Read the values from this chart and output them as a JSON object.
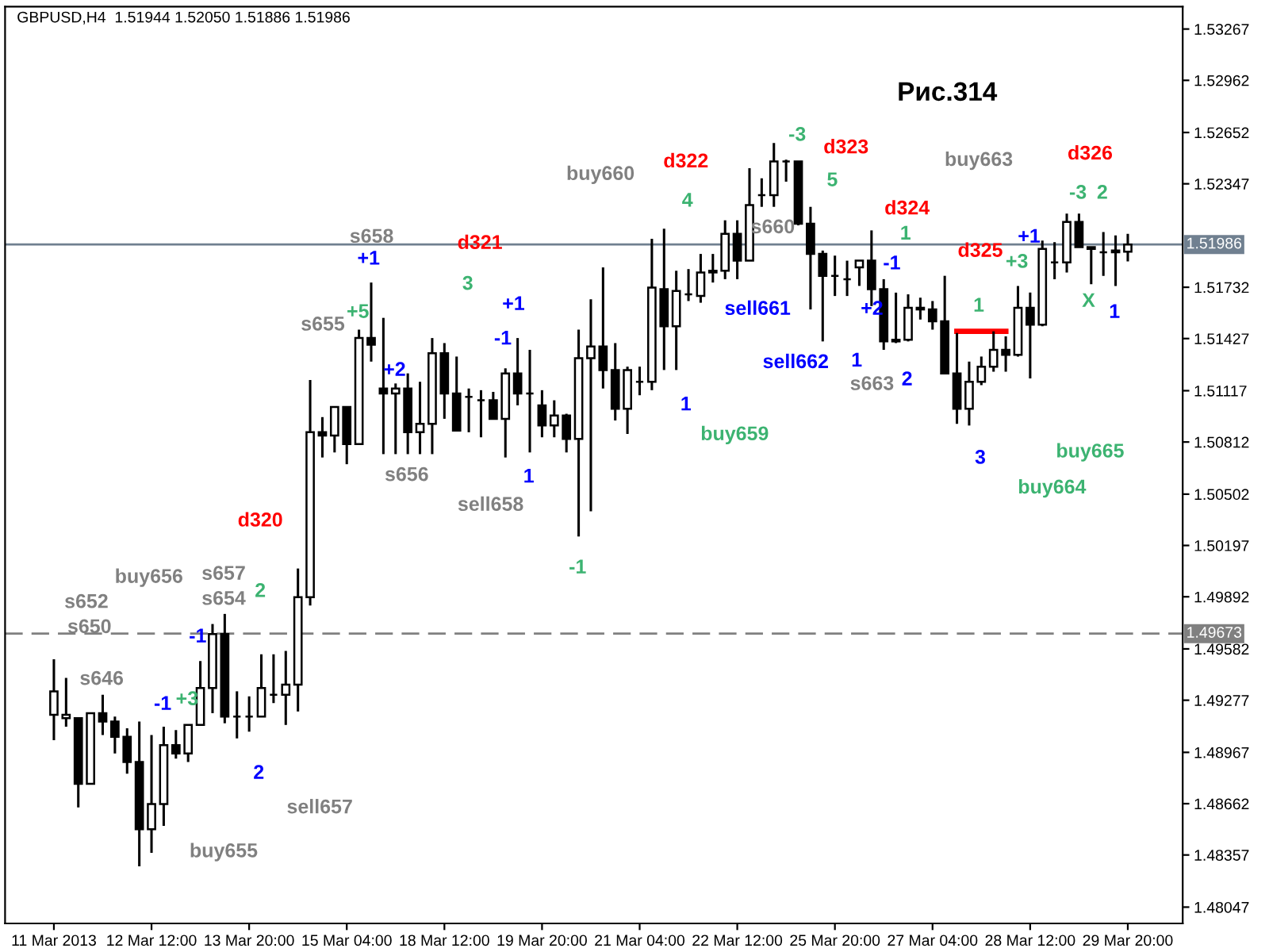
{
  "chart_data": {
    "type": "candlestick",
    "title": "GBPUSD,H4  1.51944 1.52050 1.51886 1.51986",
    "subtitle": "Рис.314",
    "color": "#000000",
    "categories": [
      "11 Mar 2013",
      null,
      null,
      null,
      null,
      null,
      null,
      null,
      "12 Mar 12:00",
      null,
      null,
      null,
      null,
      null,
      null,
      null,
      "13 Mar 20:00",
      null,
      null,
      null,
      null,
      null,
      null,
      null,
      "15 Mar 04:00",
      null,
      null,
      null,
      null,
      null,
      null,
      null,
      "18 Mar 12:00",
      null,
      null,
      null,
      null,
      null,
      null,
      null,
      "19 Mar 20:00",
      null,
      null,
      null,
      null,
      null,
      null,
      null,
      "21 Mar 04:00",
      null,
      null,
      null,
      null,
      null,
      null,
      null,
      "22 Mar 12:00",
      null,
      null,
      null,
      null,
      null,
      null,
      null,
      "25 Mar 20:00",
      null,
      null,
      null,
      null,
      null,
      null,
      null,
      "27 Mar 04:00",
      null,
      null,
      null,
      null,
      null,
      null,
      null,
      "28 Mar 12:00",
      null,
      null,
      null,
      null,
      null,
      null,
      null,
      "29 Mar 20:00"
    ],
    "ohlc": [
      [
        1.4919,
        1.4952,
        1.4904,
        1.4933
      ],
      [
        1.4917,
        1.4941,
        1.4912,
        1.4919
      ],
      [
        1.4917,
        1.4917,
        1.4864,
        1.4878
      ],
      [
        1.4878,
        1.492,
        1.4878,
        1.492
      ],
      [
        1.492,
        1.4931,
        1.4907,
        1.4915
      ],
      [
        1.4915,
        1.4918,
        1.4896,
        1.4906
      ],
      [
        1.4906,
        1.4911,
        1.4884,
        1.4891
      ],
      [
        1.4891,
        1.4915,
        1.4829,
        1.4851
      ],
      [
        1.4851,
        1.4907,
        1.4837,
        1.4866
      ],
      [
        1.4866,
        1.4912,
        1.4853,
        1.4901
      ],
      [
        1.4901,
        1.491,
        1.4893,
        1.4896
      ],
      [
        1.4896,
        1.4913,
        1.4891,
        1.4913
      ],
      [
        1.4913,
        1.4951,
        1.4913,
        1.4935
      ],
      [
        1.4935,
        1.4973,
        1.492,
        1.4967
      ],
      [
        1.4967,
        1.4979,
        1.4914,
        1.4918
      ],
      [
        1.4918,
        1.4933,
        1.4905,
        1.4918
      ],
      [
        1.4918,
        1.493,
        1.4909,
        1.4918
      ],
      [
        1.4918,
        1.4955,
        1.4918,
        1.4935
      ],
      [
        1.4931,
        1.4955,
        1.4926,
        1.4931
      ],
      [
        1.4931,
        1.4957,
        1.4913,
        1.4937
      ],
      [
        1.4937,
        1.5006,
        1.4921,
        1.4989
      ],
      [
        1.4989,
        1.5118,
        1.4984,
        1.5087
      ],
      [
        1.5087,
        1.5096,
        1.5072,
        1.5085
      ],
      [
        1.5085,
        1.5102,
        1.5075,
        1.5102
      ],
      [
        1.5102,
        1.5102,
        1.5068,
        1.508
      ],
      [
        1.508,
        1.5148,
        1.508,
        1.5143
      ],
      [
        1.5143,
        1.5176,
        1.5129,
        1.5139
      ],
      [
        1.5113,
        1.5155,
        1.5074,
        1.511
      ],
      [
        1.511,
        1.5116,
        1.5074,
        1.5113
      ],
      [
        1.5113,
        1.5122,
        1.5074,
        1.5087
      ],
      [
        1.5087,
        1.5117,
        1.5074,
        1.5092
      ],
      [
        1.5092,
        1.5143,
        1.5074,
        1.5134
      ],
      [
        1.5134,
        1.514,
        1.5095,
        1.511
      ],
      [
        1.511,
        1.5132,
        1.5088,
        1.5088
      ],
      [
        1.5108,
        1.5113,
        1.5087,
        1.5108
      ],
      [
        1.5106,
        1.5112,
        1.5084,
        1.5106
      ],
      [
        1.5106,
        1.5111,
        1.5095,
        1.5095
      ],
      [
        1.5095,
        1.5125,
        1.5072,
        1.5122
      ],
      [
        1.5122,
        1.5143,
        1.5103,
        1.511
      ],
      [
        1.511,
        1.5136,
        1.5075,
        1.511
      ],
      [
        1.5103,
        1.5112,
        1.5084,
        1.5091
      ],
      [
        1.5091,
        1.5106,
        1.5084,
        1.5097
      ],
      [
        1.5097,
        1.5098,
        1.5075,
        1.5083
      ],
      [
        1.5083,
        1.5148,
        1.5025,
        1.5131
      ],
      [
        1.5131,
        1.5166,
        1.504,
        1.5138
      ],
      [
        1.5138,
        1.5185,
        1.5113,
        1.5124
      ],
      [
        1.5124,
        1.514,
        1.5094,
        1.5101
      ],
      [
        1.5101,
        1.5126,
        1.5086,
        1.5124
      ],
      [
        1.5117,
        1.5126,
        1.5109,
        1.5117
      ],
      [
        1.5117,
        1.5202,
        1.5112,
        1.5173
      ],
      [
        1.5172,
        1.5208,
        1.5124,
        1.515
      ],
      [
        1.515,
        1.5183,
        1.5124,
        1.5171
      ],
      [
        1.5169,
        1.5184,
        1.5165,
        1.5169
      ],
      [
        1.5168,
        1.5193,
        1.5164,
        1.5182
      ],
      [
        1.5182,
        1.5193,
        1.5176,
        1.5183
      ],
      [
        1.5183,
        1.5213,
        1.5178,
        1.5205
      ],
      [
        1.5205,
        1.5213,
        1.5178,
        1.5189
      ],
      [
        1.5189,
        1.5244,
        1.5189,
        1.5222
      ],
      [
        1.5228,
        1.5238,
        1.5221,
        1.5228
      ],
      [
        1.5228,
        1.5259,
        1.5221,
        1.5248
      ],
      [
        1.5248,
        1.5249,
        1.5236,
        1.5248
      ],
      [
        1.5248,
        1.5248,
        1.521,
        1.5211
      ],
      [
        1.5211,
        1.5221,
        1.516,
        1.5193
      ],
      [
        1.5193,
        1.5195,
        1.5141,
        1.518
      ],
      [
        1.518,
        1.5192,
        1.5168,
        1.518
      ],
      [
        1.5178,
        1.5189,
        1.5168,
        1.5178
      ],
      [
        1.5185,
        1.5189,
        1.5174,
        1.5189
      ],
      [
        1.5189,
        1.5207,
        1.5162,
        1.5172
      ],
      [
        1.5172,
        1.5178,
        1.5136,
        1.5141
      ],
      [
        1.5141,
        1.517,
        1.514,
        1.5142
      ],
      [
        1.5142,
        1.5169,
        1.5141,
        1.5161
      ],
      [
        1.5161,
        1.5167,
        1.5154,
        1.516
      ],
      [
        1.516,
        1.5165,
        1.5148,
        1.5153
      ],
      [
        1.5153,
        1.518,
        1.5122,
        1.5122
      ],
      [
        1.5122,
        1.5146,
        1.5092,
        1.5101
      ],
      [
        1.5101,
        1.5129,
        1.5091,
        1.5117
      ],
      [
        1.5117,
        1.5132,
        1.5115,
        1.5126
      ],
      [
        1.5126,
        1.5147,
        1.5123,
        1.5136
      ],
      [
        1.5136,
        1.5144,
        1.5123,
        1.5133
      ],
      [
        1.5133,
        1.5174,
        1.5132,
        1.5161
      ],
      [
        1.5161,
        1.517,
        1.5119,
        1.5151
      ],
      [
        1.5151,
        1.5201,
        1.515,
        1.5196
      ],
      [
        1.5188,
        1.52,
        1.5178,
        1.5188
      ],
      [
        1.5188,
        1.5217,
        1.5182,
        1.5212
      ],
      [
        1.5212,
        1.5217,
        1.5197,
        1.5197
      ],
      [
        1.5197,
        1.5197,
        1.5175,
        1.5196
      ],
      [
        1.5194,
        1.5206,
        1.518,
        1.5194
      ],
      [
        1.5194,
        1.5204,
        1.5174,
        1.5195
      ],
      [
        1.51944,
        1.5205,
        1.51886,
        1.51986
      ]
    ],
    "series": [
      {
        "type": "line",
        "color": "#ff0000",
        "values": [
          null,
          null,
          null,
          null,
          null,
          null,
          null,
          null,
          null,
          null,
          null,
          null,
          null,
          null,
          null,
          null,
          null,
          null,
          null,
          null,
          null,
          null,
          null,
          null,
          null,
          null,
          null,
          null,
          null,
          null,
          null,
          null,
          null,
          null,
          null,
          null,
          null,
          null,
          null,
          null,
          null,
          null,
          null,
          null,
          null,
          null,
          null,
          null,
          null,
          null,
          null,
          null,
          null,
          null,
          null,
          null,
          null,
          null,
          null,
          null,
          null,
          null,
          null,
          null,
          null,
          null,
          null,
          null,
          null,
          null,
          null,
          null,
          null,
          null,
          1.5147,
          1.5147,
          1.5147,
          1.5147,
          1.5147,
          null,
          null,
          null,
          null,
          null,
          null,
          null,
          null,
          null,
          null
        ]
      }
    ],
    "ylim": [
      1.4795,
      1.534
    ],
    "yticks": [
      1.48047,
      1.48357,
      1.48662,
      1.48967,
      1.49277,
      1.49582,
      1.49892,
      1.50197,
      1.50502,
      1.50812,
      1.51117,
      1.51427,
      1.51732,
      1.52347,
      1.52652,
      1.52962,
      1.53267
    ],
    "ref_lines": [
      {
        "axis": "y",
        "value": 1.51986,
        "label": "1.51986",
        "color": "#708090",
        "line_style": "solid"
      },
      {
        "axis": "y",
        "value": 1.49673,
        "label": "1.49673",
        "color": "#808080",
        "line_style": "dashed"
      }
    ],
    "annotations": [
      "s652",
      "s650",
      "s646",
      "buy656",
      "s657",
      "s654",
      "2",
      "d320",
      "-1",
      "-1",
      "+3",
      "2",
      "sell657",
      "buy655",
      "s655",
      "+5",
      "+1",
      "s658",
      "d321",
      "3",
      "+1",
      "-1",
      "+2",
      "s656",
      "sell658",
      "1",
      "-1",
      "buy660",
      "d322",
      "4",
      "1",
      "buy659",
      "-3",
      "d323",
      "5",
      "s660",
      "sell661",
      "sell662",
      "1",
      "+2",
      "d324",
      "1",
      "-1",
      "s663",
      "2",
      "buy663",
      "d325",
      "1",
      "3",
      "+3",
      "+1",
      "buy665",
      "buy664",
      "d326",
      "-3",
      "2",
      "X",
      "1"
    ]
  }
}
